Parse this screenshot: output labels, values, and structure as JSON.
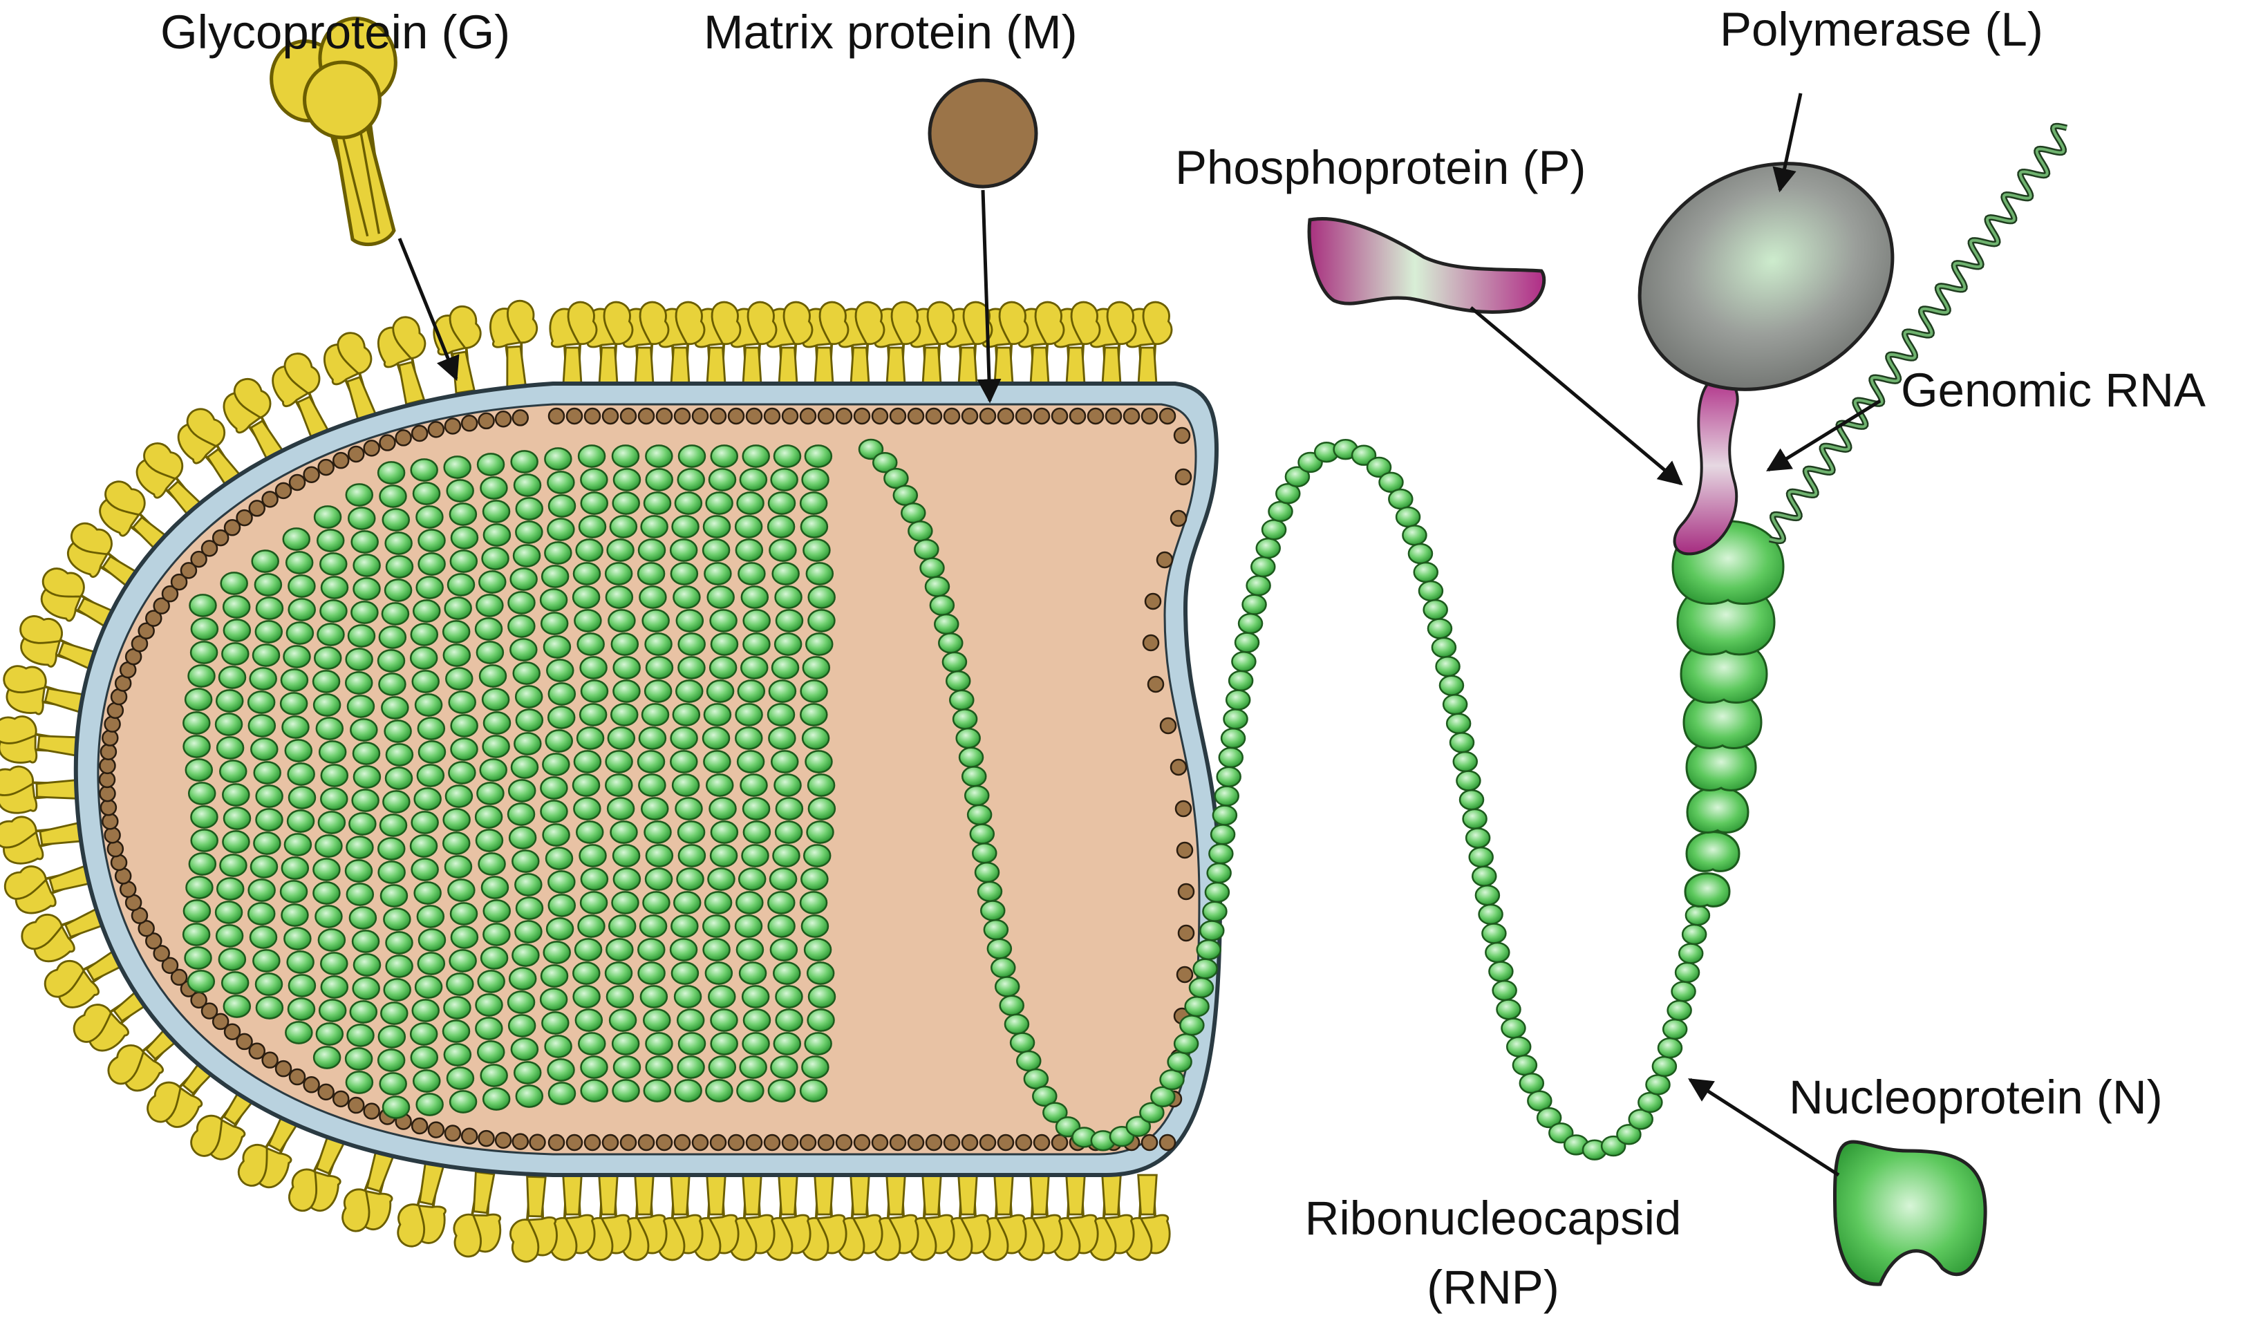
{
  "labels": {
    "glycoprotein": "Glycoprotein (G)",
    "matrix": "Matrix protein (M)",
    "polymerase": "Polymerase (L)",
    "phosphoprotein": "Phosphoprotein (P)",
    "genomic_rna": "Genomic RNA",
    "nucleoprotein": "Nucleoprotein (N)",
    "ribonucleocapsid_line1": "Ribonucleocapsid",
    "ribonucleocapsid_line2": "(RNP)"
  },
  "colors": {
    "glycoprotein": "#e8d23a",
    "glycoprotein_stroke": "#6b5e00",
    "matrix": "#9b7448",
    "membrane": "#b9d2df",
    "interior": "#e8c2a4",
    "nucleoprotein": "#4fbf4f",
    "nucleoprotein_light": "#c9f0c9",
    "phosphoprotein": "#b03a96",
    "polymerase": "#7d807d",
    "rna": "#3d7a3d",
    "arrow": "#111111"
  }
}
